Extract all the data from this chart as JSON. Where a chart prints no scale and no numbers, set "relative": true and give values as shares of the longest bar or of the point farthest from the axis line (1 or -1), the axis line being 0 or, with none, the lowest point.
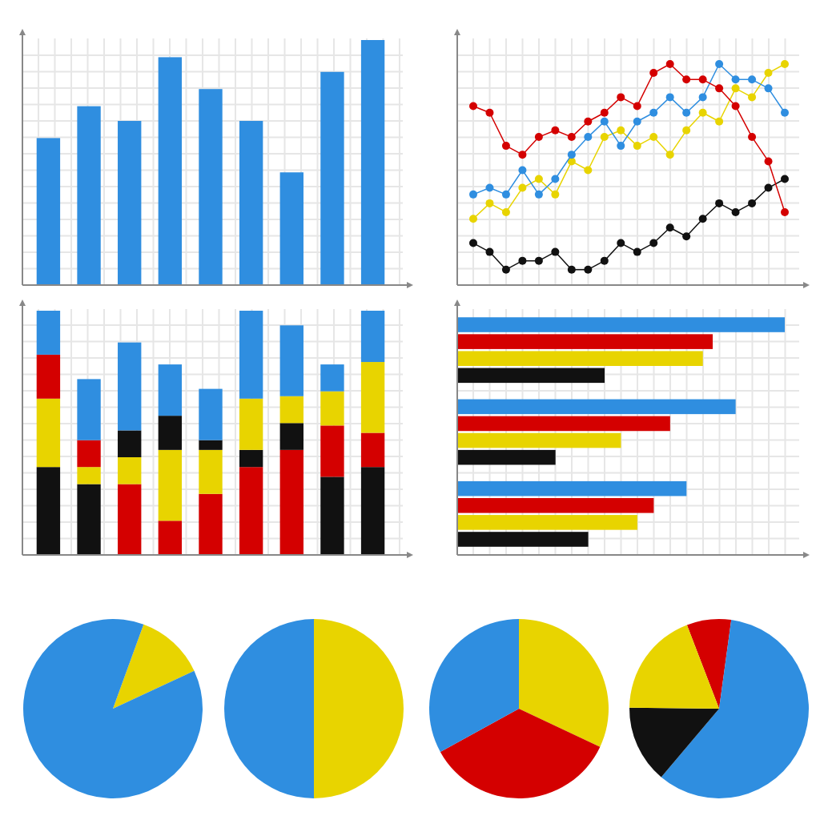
{
  "chart_data": [
    {
      "type": "bar",
      "relative": true,
      "grid": true,
      "categories": [
        null,
        null,
        null,
        null,
        null,
        null,
        null,
        null,
        null
      ],
      "values": [
        0.6,
        0.73,
        0.67,
        0.93,
        0.8,
        0.67,
        0.46,
        0.87,
        1
      ],
      "color": "#2f8ee0"
    },
    {
      "type": "line",
      "relative": true,
      "grid": true,
      "marker": "circle",
      "categories": [
        null,
        null,
        null,
        null,
        null,
        null,
        null,
        null,
        null,
        null,
        null,
        null,
        null,
        null,
        null,
        null,
        null,
        null,
        null,
        null
      ],
      "series": [
        {
          "color": "#111111",
          "values": [
            0.19,
            0.15,
            0.07,
            0.11,
            0.11,
            0.15,
            0.07,
            0.07,
            0.11,
            0.19,
            0.15,
            0.19,
            0.26,
            0.22,
            0.3,
            0.37,
            0.33,
            0.37,
            0.44,
            0.48
          ]
        },
        {
          "color": "#e8d400",
          "values": [
            0.3,
            0.37,
            0.33,
            0.44,
            0.48,
            0.41,
            0.56,
            0.52,
            0.67,
            0.7,
            0.63,
            0.67,
            0.59,
            0.7,
            0.78,
            0.74,
            0.89,
            0.85,
            0.96,
            1
          ]
        },
        {
          "color": "#2f8ee0",
          "values": [
            0.41,
            0.44,
            0.41,
            0.52,
            0.41,
            0.48,
            0.59,
            0.67,
            0.74,
            0.63,
            0.74,
            0.78,
            0.85,
            0.78,
            0.85,
            1,
            0.93,
            0.93,
            0.89,
            0.78
          ]
        },
        {
          "color": "#d40000",
          "values": [
            0.81,
            0.78,
            0.63,
            0.59,
            0.67,
            0.7,
            0.67,
            0.74,
            0.78,
            0.85,
            0.81,
            0.96,
            1,
            0.93,
            0.93,
            0.89,
            0.81,
            0.67,
            0.56,
            0.33
          ]
        }
      ]
    },
    {
      "type": "bar",
      "stacked": true,
      "relative": true,
      "grid": true,
      "categories": [
        null,
        null,
        null,
        null,
        null,
        null,
        null,
        null,
        null
      ],
      "series": [
        {
          "colors": [
            "#111111",
            "#111111",
            "#d40000",
            "#d40000",
            "#d40000",
            "#d40000",
            "#d40000",
            "#111111",
            "#111111"
          ],
          "values": [
            0.36,
            0.29,
            0.29,
            0.14,
            0.25,
            0.36,
            0.43,
            0.32,
            0.36
          ]
        },
        {
          "colors": [
            "#e8d400",
            "#e8d400",
            "#e8d400",
            "#e8d400",
            "#e8d400",
            "#111111",
            "#111111",
            "#d40000",
            "#d40000"
          ],
          "values": [
            0.28,
            0.07,
            0.11,
            0.29,
            0.18,
            0.07,
            0.11,
            0.21,
            0.14
          ]
        },
        {
          "colors": [
            "#d40000",
            "#d40000",
            "#111111",
            "#111111",
            "#111111",
            "#e8d400",
            "#e8d400",
            "#e8d400",
            "#e8d400"
          ],
          "values": [
            0.18,
            0.11,
            0.11,
            0.14,
            0.04,
            0.21,
            0.11,
            0.14,
            0.29
          ]
        },
        {
          "color": "#2f8ee0",
          "values": [
            0.18,
            0.25,
            0.36,
            0.21,
            0.21,
            0.36,
            0.29,
            0.11,
            0.21
          ]
        }
      ]
    },
    {
      "type": "bar",
      "orientation": "horizontal",
      "relative": true,
      "grid": true,
      "categories": [
        null,
        null,
        null
      ],
      "series": [
        {
          "color": "#2f8ee0",
          "values": [
            1,
            0.85,
            0.7
          ]
        },
        {
          "color": "#d40000",
          "values": [
            0.78,
            0.65,
            0.6
          ]
        },
        {
          "color": "#e8d400",
          "values": [
            0.75,
            0.5,
            0.55
          ]
        },
        {
          "color": "#111111",
          "values": [
            0.45,
            0.3,
            0.4
          ]
        }
      ]
    },
    {
      "type": "pie",
      "categories": [
        null,
        null
      ],
      "values": [
        12.5,
        87.5
      ],
      "colors": [
        "#e8d400",
        "#2f8ee0"
      ]
    },
    {
      "type": "pie",
      "categories": [
        null,
        null
      ],
      "values": [
        50,
        50
      ],
      "colors": [
        "#e8d400",
        "#2f8ee0"
      ]
    },
    {
      "type": "pie",
      "categories": [
        null,
        null,
        null
      ],
      "values": [
        32,
        35,
        33
      ],
      "colors": [
        "#e8d400",
        "#d40000",
        "#2f8ee0"
      ]
    },
    {
      "type": "pie",
      "categories": [
        null,
        null,
        null,
        null
      ],
      "values": [
        8,
        59,
        14,
        19
      ],
      "colors": [
        "#d40000",
        "#2f8ee0",
        "#111111",
        "#e8d400"
      ]
    }
  ]
}
